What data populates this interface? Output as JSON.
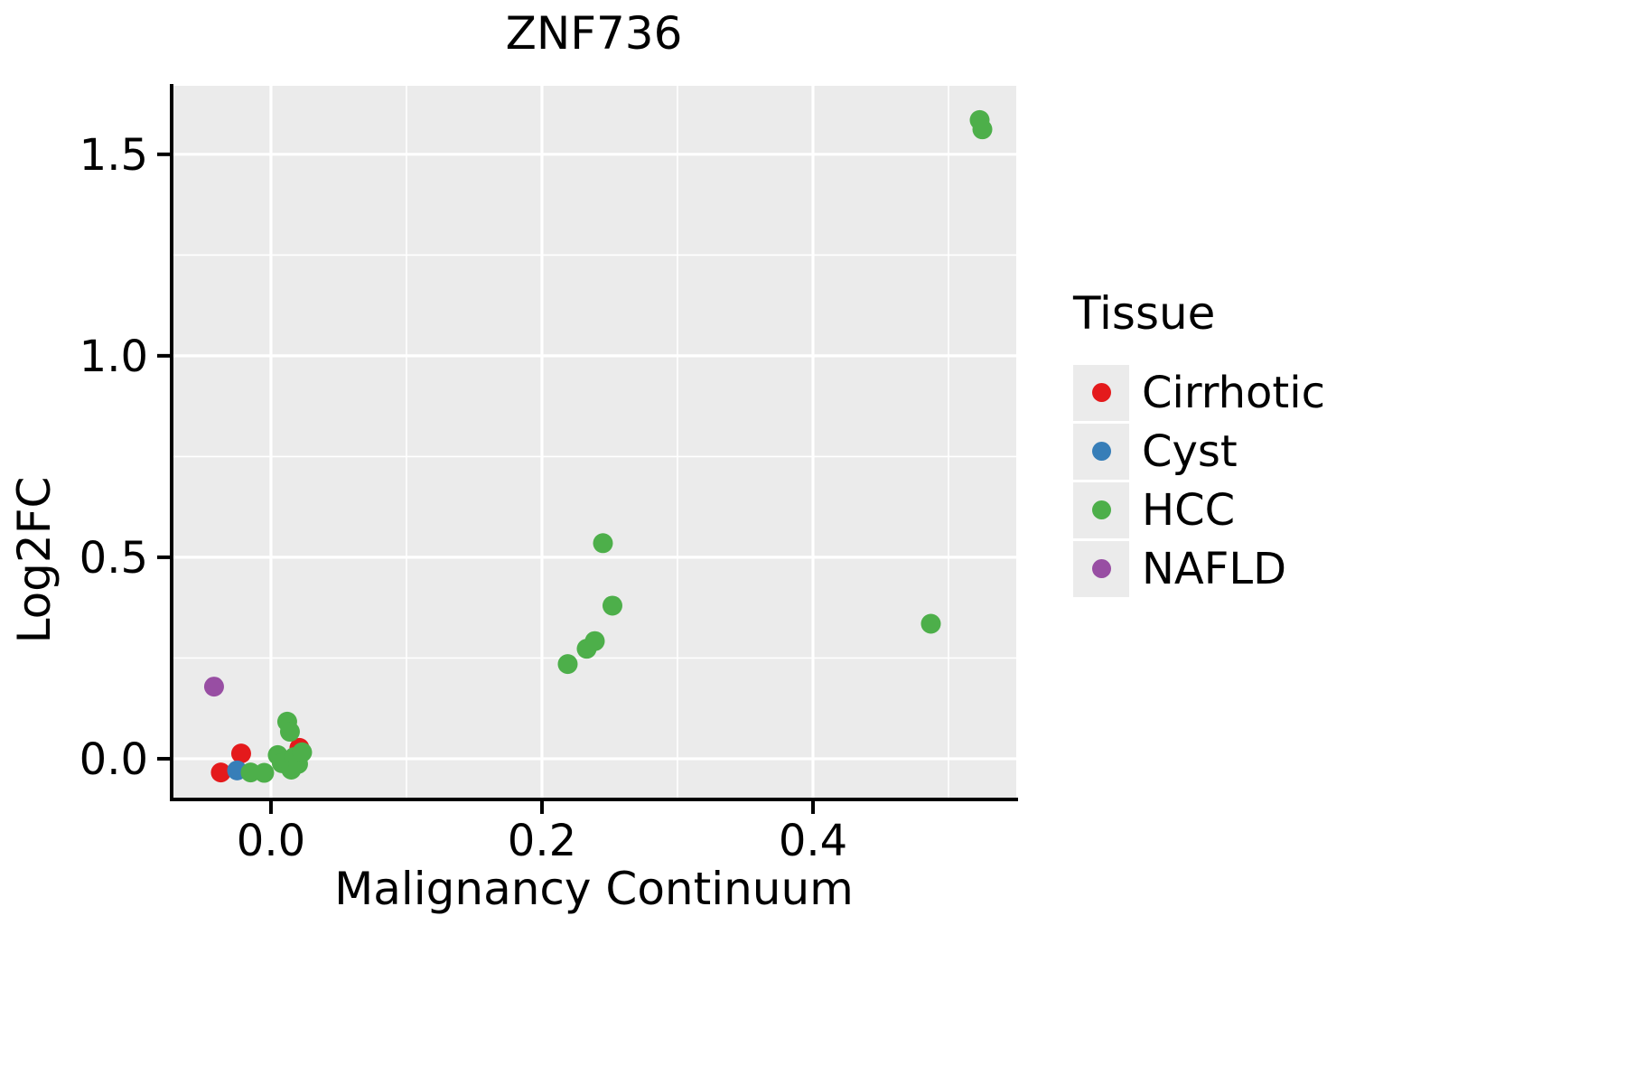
{
  "chart_data": {
    "type": "scatter",
    "title": "ZNF736",
    "xlabel": "Malignancy Continuum",
    "ylabel": "Log2FC",
    "xlim": [
      -0.0733,
      0.55
    ],
    "ylim": [
      -0.101,
      1.67
    ],
    "background": "#ebebeb",
    "grid": true,
    "gridline_color": "#ffffff",
    "axis_color": "#000000",
    "marker_radius": 11,
    "xticks": [
      {
        "value": 0.0,
        "label": "0.0"
      },
      {
        "value": 0.2,
        "label": "0.2"
      },
      {
        "value": 0.4,
        "label": "0.4"
      }
    ],
    "yticks": [
      {
        "value": 0.0,
        "label": "0.0"
      },
      {
        "value": 0.5,
        "label": "0.5"
      },
      {
        "value": 1.0,
        "label": "1.0"
      },
      {
        "value": 1.5,
        "label": "1.5"
      }
    ],
    "minor_xticks": [
      0.1,
      0.3,
      0.5
    ],
    "minor_yticks": [
      0.25,
      0.75,
      1.25
    ],
    "legend": {
      "title": "Tissue",
      "position": "right",
      "entries": [
        {
          "label": "Cirrhotic",
          "color": "#e41a1c"
        },
        {
          "label": "Cyst",
          "color": "#377eb8"
        },
        {
          "label": "HCC",
          "color": "#4daf4a"
        },
        {
          "label": "NAFLD",
          "color": "#984ea3"
        }
      ]
    },
    "series": [
      {
        "name": "Cirrhotic",
        "color": "#e41a1c",
        "points": [
          [
            -0.037,
            -0.034
          ],
          [
            -0.022,
            0.013
          ],
          [
            0.021,
            0.027
          ]
        ]
      },
      {
        "name": "Cyst",
        "color": "#377eb8",
        "points": [
          [
            -0.025,
            -0.029
          ]
        ]
      },
      {
        "name": "HCC",
        "color": "#4daf4a",
        "points": [
          [
            -0.015,
            -0.034
          ],
          [
            -0.005,
            -0.035
          ],
          [
            0.005,
            0.009
          ],
          [
            0.008,
            -0.011
          ],
          [
            0.012,
            0.092
          ],
          [
            0.014,
            0.067
          ],
          [
            0.015,
            -0.027
          ],
          [
            0.017,
            0.004
          ],
          [
            0.02,
            -0.013
          ],
          [
            0.023,
            0.016
          ],
          [
            0.219,
            0.235
          ],
          [
            0.233,
            0.273
          ],
          [
            0.239,
            0.292
          ],
          [
            0.252,
            0.38
          ],
          [
            0.245,
            0.535
          ],
          [
            0.487,
            0.335
          ],
          [
            0.523,
            1.585
          ],
          [
            0.525,
            1.562
          ]
        ]
      },
      {
        "name": "NAFLD",
        "color": "#984ea3",
        "points": [
          [
            -0.042,
            0.179
          ]
        ]
      }
    ]
  }
}
